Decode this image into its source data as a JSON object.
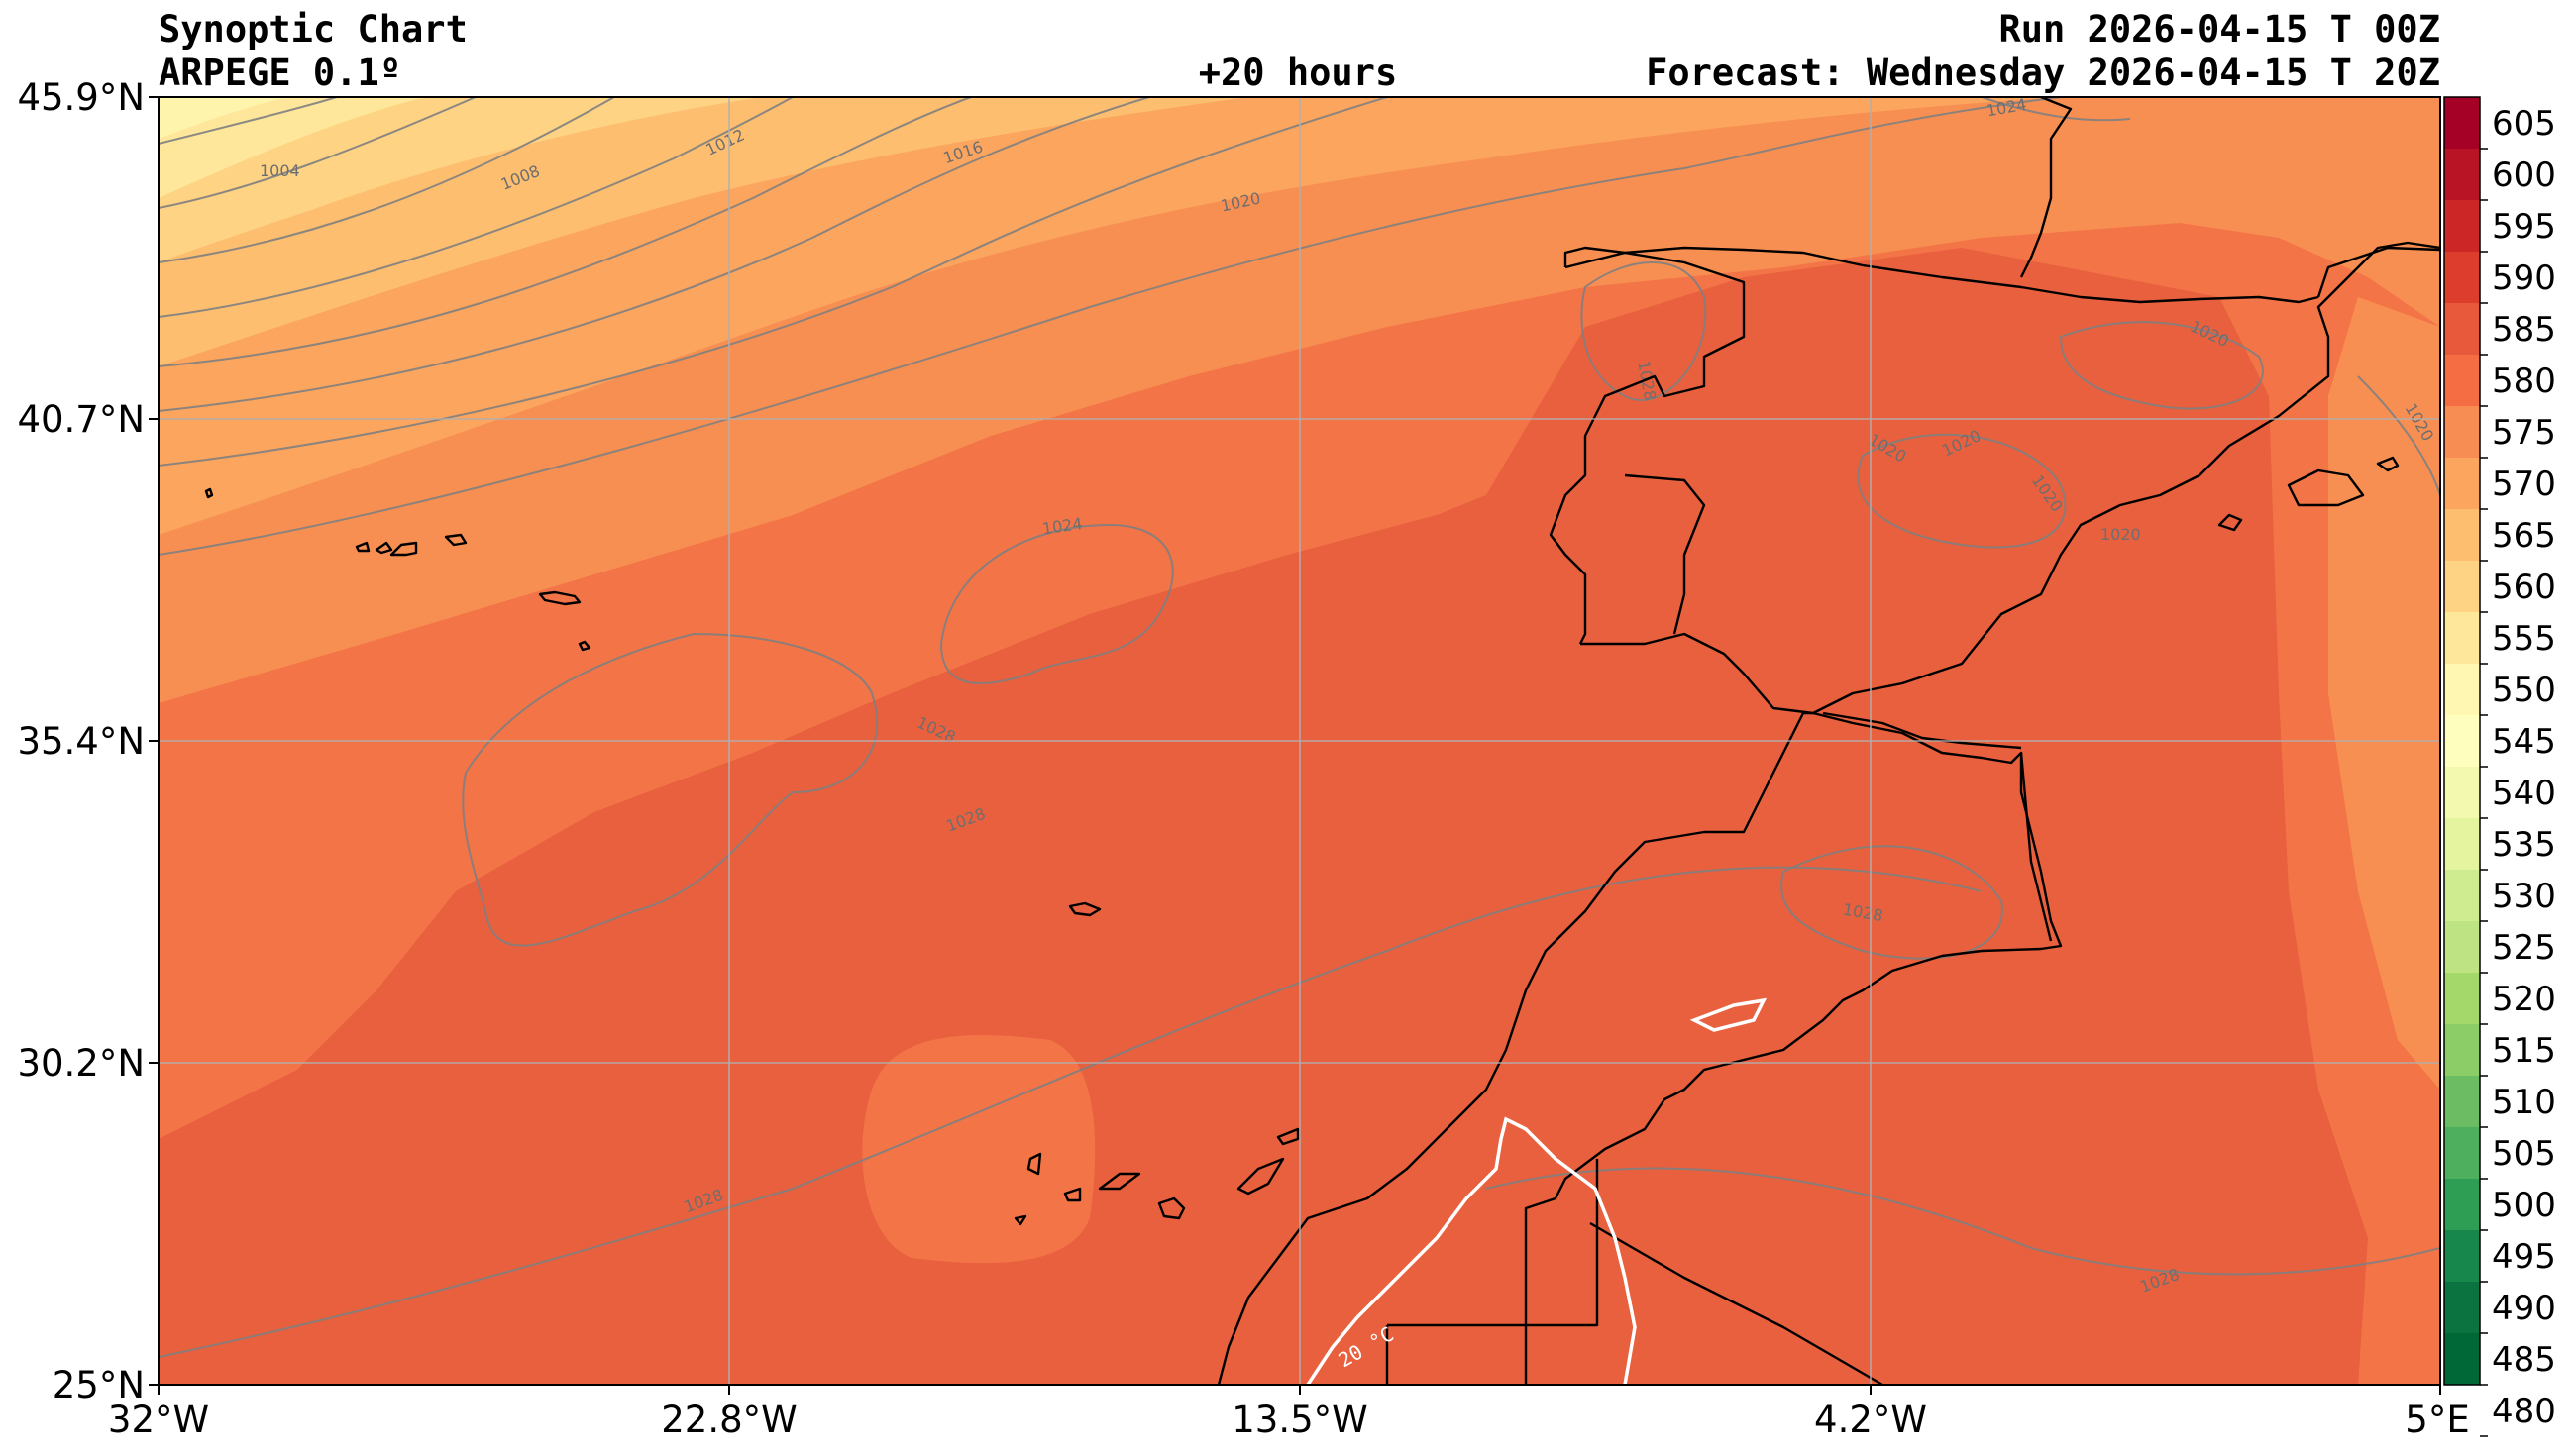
{
  "header": {
    "title": "Synoptic Chart",
    "model": "ARPEGE 0.1º",
    "lead": "+20 hours",
    "run": "Run 2026-04-15 T 00Z",
    "forecast": "Forecast: Wednesday 2026-04-15 T 20Z"
  },
  "axes": {
    "lat_labels": [
      "45.9°N",
      "40.7°N",
      "35.4°N",
      "30.2°N",
      "25°N"
    ],
    "lon_labels": [
      "32°W",
      "22.8°W",
      "13.5°W",
      "4.2°W",
      "5°E"
    ]
  },
  "colorbar": {
    "labels": [
      "605",
      "600",
      "595",
      "590",
      "585",
      "580",
      "575",
      "570",
      "565",
      "560",
      "555",
      "550",
      "545",
      "540",
      "535",
      "530",
      "525",
      "520",
      "515",
      "510",
      "505",
      "500",
      "495",
      "490",
      "485",
      "480"
    ],
    "colors": [
      "#a50026",
      "#b91326",
      "#cc2627",
      "#dd3d2d",
      "#e8593b",
      "#f46d43",
      "#f78d53",
      "#fba55e",
      "#fdbe70",
      "#fed384",
      "#fee79b",
      "#fff7b2",
      "#feffbe",
      "#f3fab0",
      "#e4f49f",
      "#d0ec90",
      "#bde383",
      "#a5d86a",
      "#8ccd67",
      "#6bbc63",
      "#4eb05e",
      "#2d9e54",
      "#18874b",
      "#0a7340",
      "#006837"
    ]
  },
  "isobar_labels": [
    "1004",
    "1008",
    "1012",
    "1016",
    "1020",
    "1024",
    "1024",
    "1028",
    "1028",
    "1028",
    "1028",
    "1028",
    "1020",
    "1020",
    "1020",
    "1020",
    "1020",
    "1020",
    "1024",
    "1028"
  ],
  "temp_label": "20 °C"
}
